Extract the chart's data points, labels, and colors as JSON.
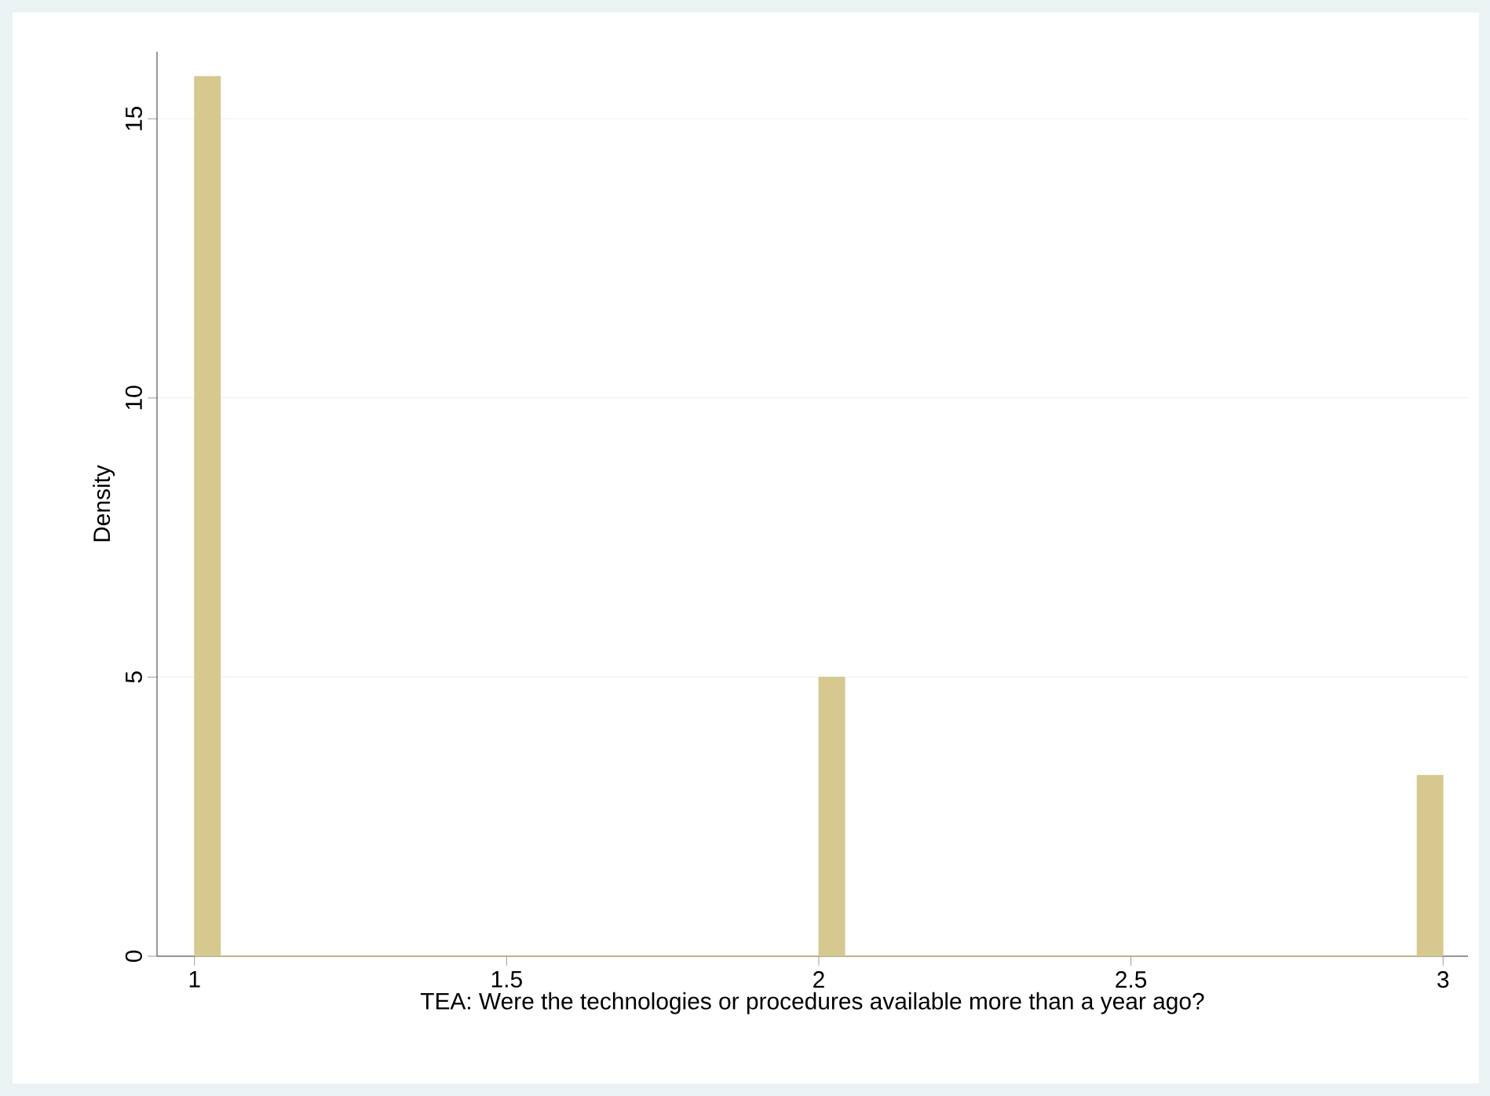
{
  "chart_data": {
    "type": "histogram",
    "xlabel": "TEA: Were the technologies or procedures available more than a year ago?",
    "ylabel": "Density",
    "bins": [
      1,
      1.0417,
      1.0833,
      1.125,
      1.1667,
      1.2083,
      1.25,
      1.2917,
      1.3333,
      1.375,
      1.4167,
      1.4583,
      1.5,
      1.5417,
      1.5833,
      1.625,
      1.6667,
      1.7083,
      1.75,
      1.7917,
      1.8333,
      1.875,
      1.9167,
      1.9583,
      2,
      2.0417,
      2.0833,
      2.125,
      2.1667,
      2.2083,
      2.25,
      2.2917,
      2.3333,
      2.375,
      2.4167,
      2.4583,
      2.5,
      2.5417,
      2.5833,
      2.625,
      2.6667,
      2.7083,
      2.75,
      2.7917,
      2.8333,
      2.875,
      2.9167,
      2.9583,
      3
    ],
    "values": [
      15.76,
      0,
      0,
      0,
      0,
      0,
      0,
      0,
      0,
      0,
      0,
      0,
      0,
      0,
      0,
      0,
      0,
      0,
      0,
      0,
      0,
      0,
      0,
      0,
      5,
      0,
      0,
      0,
      0,
      0,
      0,
      0,
      0,
      0,
      0,
      0,
      0,
      0,
      0,
      0,
      0,
      0,
      0,
      0,
      0,
      0,
      0,
      3.24
    ],
    "color": "#d6c88e",
    "xlim": [
      0.94,
      3.04
    ],
    "ylim": [
      0,
      16.2
    ],
    "xticks": [
      1,
      1.5,
      2,
      2.5,
      3
    ],
    "yticks": [
      0,
      5,
      10,
      15
    ],
    "grid": "y"
  }
}
